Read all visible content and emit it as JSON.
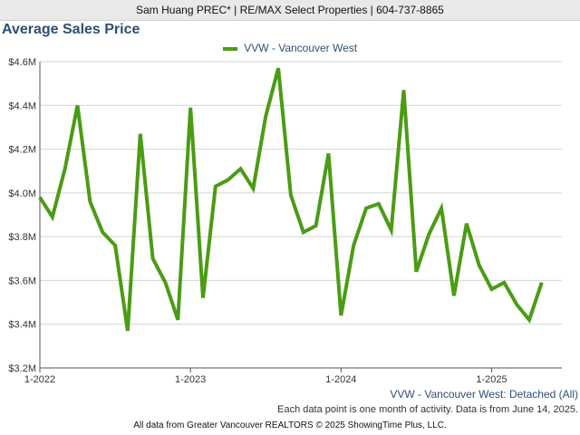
{
  "header": {
    "agent_line": "Sam Huang PREC* | RE/MAX Select Properties | 604-737-8865"
  },
  "chart_data": {
    "type": "line",
    "title": "Average Sales Price",
    "xlabel": "",
    "ylabel": "",
    "ylim": [
      3.2,
      4.6
    ],
    "y_ticks": [
      3.2,
      3.4,
      3.6,
      3.8,
      4.0,
      4.2,
      4.4,
      4.6
    ],
    "y_tick_labels": [
      "$3.2M",
      "$3.4M",
      "$3.6M",
      "$3.8M",
      "$4.0M",
      "$4.2M",
      "$4.4M",
      "$4.6M"
    ],
    "x_ticks": [
      0,
      12,
      24,
      36
    ],
    "x_tick_labels": [
      "1-2022",
      "1-2023",
      "1-2024",
      "1-2025"
    ],
    "grid": "horizontal",
    "legend_position": "top-center",
    "series": [
      {
        "name": "VVW - Vancouver West",
        "color": "#4a9c14",
        "x": [
          0,
          1,
          2,
          3,
          4,
          5,
          6,
          7,
          8,
          9,
          10,
          11,
          12,
          13,
          14,
          15,
          16,
          17,
          18,
          19,
          20,
          21,
          22,
          23,
          24,
          25,
          26,
          27,
          28,
          29,
          30,
          31,
          32,
          33,
          34,
          35,
          36,
          37,
          38,
          39,
          40,
          41
        ],
        "values": [
          3.98,
          3.89,
          4.11,
          4.4,
          3.96,
          3.82,
          3.76,
          3.37,
          4.27,
          3.7,
          3.59,
          3.42,
          4.39,
          3.52,
          4.03,
          4.06,
          4.11,
          4.02,
          4.35,
          4.57,
          3.99,
          3.82,
          3.85,
          4.18,
          3.44,
          3.76,
          3.93,
          3.95,
          3.83,
          4.47,
          3.64,
          3.81,
          3.93,
          3.53,
          3.86,
          3.67,
          3.56,
          3.59,
          3.49,
          3.42,
          3.59,
          null
        ]
      }
    ]
  },
  "caption": {
    "series_label": "VVW - Vancouver West: Detached (All)",
    "note": "Each data point is one month of activity. Data is from June 14, 2025.",
    "footer": "All data from Greater Vancouver REALTORS © 2025 ShowingTime Plus, LLC."
  }
}
